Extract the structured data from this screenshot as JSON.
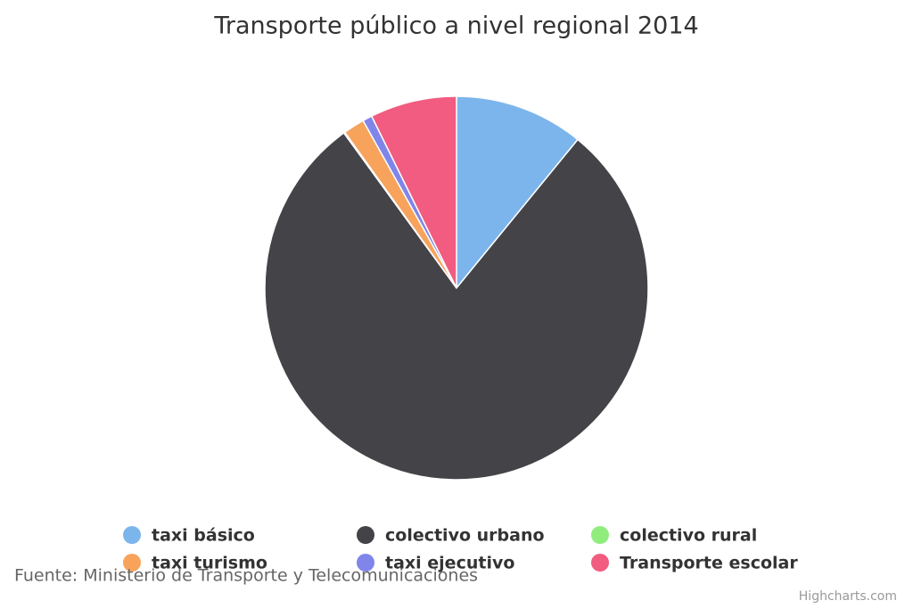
{
  "chart_data": {
    "type": "pie",
    "title": "Transporte público a nivel regional 2014",
    "categories": [
      "taxi básico",
      "colectivo urbano",
      "colectivo rural",
      "taxi turismo",
      "taxi ejecutivo",
      "Transporte escolar"
    ],
    "values": [
      10.9,
      79.1,
      0.1,
      1.8,
      0.8,
      7.3
    ],
    "colors": [
      "#7cb5ec",
      "#434348",
      "#90ed7d",
      "#f7a35c",
      "#8085e9",
      "#f15c80"
    ],
    "source": "Fuente: Ministerio de Transporte y Telecomunicaciones",
    "credits": "Highcharts.com"
  }
}
